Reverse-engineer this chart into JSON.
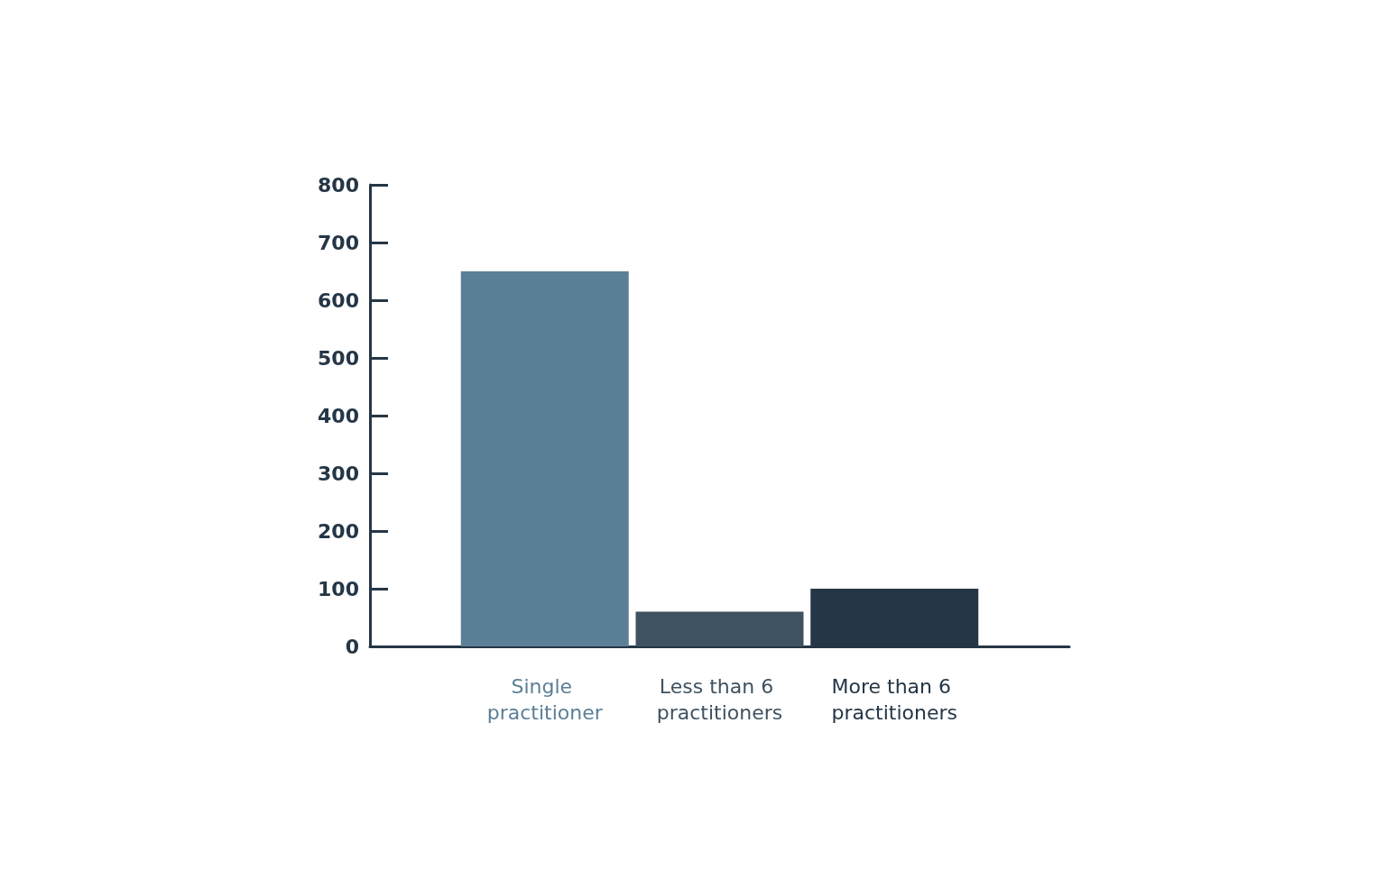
{
  "chart_data": {
    "type": "bar",
    "categories": [
      "Single practitioner",
      "Less than 6 practitioners",
      "More than 6 practitioners"
    ],
    "values": [
      650,
      60,
      100
    ],
    "colors": [
      "#5b7f96",
      "#3f5261",
      "#253646"
    ],
    "ylim": [
      0,
      800
    ],
    "yticks": [
      0,
      100,
      200,
      300,
      400,
      500,
      600,
      700,
      800
    ],
    "grid": false
  }
}
